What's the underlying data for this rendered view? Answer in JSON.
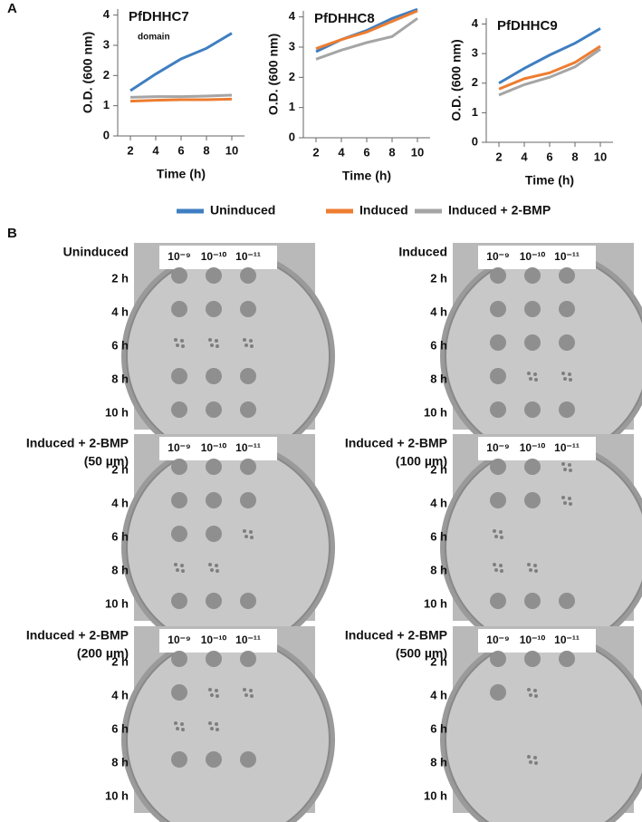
{
  "figure": {
    "panel_a": "A",
    "panel_b": "B"
  },
  "chart_data": [
    {
      "type": "line",
      "title": "PfDHHC7",
      "annotation": "domain",
      "x_label": "Time (h)",
      "y_label": "O.D. (600 nm)",
      "x": [
        2,
        4,
        6,
        8,
        10
      ],
      "xlim": [
        1,
        11
      ],
      "xticks": [
        2,
        4,
        6,
        8,
        10
      ],
      "ylim": [
        0,
        4.2
      ],
      "yticks": [
        0,
        1,
        2,
        3,
        4
      ],
      "series": [
        {
          "name": "Uninduced",
          "color": "#3f7fc1",
          "values": [
            1.5,
            2.05,
            2.55,
            2.9,
            3.4
          ]
        },
        {
          "name": "Induced",
          "color": "#ed7d31",
          "values": [
            1.15,
            1.18,
            1.2,
            1.2,
            1.22
          ]
        },
        {
          "name": "Induced + 2-BMP",
          "color": "#a5a5a5",
          "values": [
            1.28,
            1.3,
            1.3,
            1.32,
            1.35
          ]
        }
      ]
    },
    {
      "type": "line",
      "title": "PfDHHC8",
      "x_label": "Time (h)",
      "y_label": "O.D. (600 nm)",
      "x": [
        2,
        4,
        6,
        8,
        10
      ],
      "xlim": [
        1,
        11
      ],
      "xticks": [
        2,
        4,
        6,
        8,
        10
      ],
      "ylim": [
        0,
        4.2
      ],
      "yticks": [
        0,
        1,
        2,
        3,
        4
      ],
      "series": [
        {
          "color": "#3f7fc1",
          "values": [
            2.85,
            3.25,
            3.55,
            3.95,
            4.25
          ]
        },
        {
          "color": "#ed7d31",
          "values": [
            2.95,
            3.25,
            3.5,
            3.85,
            4.2
          ]
        },
        {
          "color": "#a5a5a5",
          "values": [
            2.6,
            2.9,
            3.15,
            3.35,
            3.95
          ]
        }
      ]
    },
    {
      "type": "line",
      "title": "PfDHHC9",
      "x_label": "Time (h)",
      "y_label": "O.D. (600 nm)",
      "x": [
        2,
        4,
        6,
        8,
        10
      ],
      "xlim": [
        1,
        11
      ],
      "xticks": [
        2,
        4,
        6,
        8,
        10
      ],
      "ylim": [
        0,
        4.2
      ],
      "yticks": [
        0,
        1,
        2,
        3,
        4
      ],
      "series": [
        {
          "color": "#3f7fc1",
          "values": [
            2.0,
            2.5,
            2.95,
            3.35,
            3.85
          ]
        },
        {
          "color": "#ed7d31",
          "values": [
            1.8,
            2.15,
            2.35,
            2.7,
            3.25
          ]
        },
        {
          "color": "#a5a5a5",
          "values": [
            1.6,
            1.95,
            2.2,
            2.55,
            3.15
          ]
        }
      ]
    }
  ],
  "panel_b": {
    "plates": [
      {
        "title": [
          "Uninduced"
        ],
        "dilutions": [
          "10⁻⁹",
          "10⁻¹⁰",
          "10⁻¹¹"
        ],
        "times": [
          "2 h",
          "4 h",
          "6 h",
          "8 h",
          "10 h"
        ]
      },
      {
        "title": [
          "Induced"
        ],
        "dilutions": [
          "10⁻⁹",
          "10⁻¹⁰",
          "10⁻¹¹"
        ],
        "times": [
          "2 h",
          "4 h",
          "6 h",
          "8 h",
          "10 h"
        ]
      },
      {
        "title": [
          "Induced + 2-BMP",
          "(50 µm)"
        ],
        "dilutions": [
          "10⁻⁹",
          "10⁻¹⁰",
          "10⁻¹¹"
        ],
        "times": [
          "2 h",
          "4 h",
          "6 h",
          "8 h",
          "10 h"
        ]
      },
      {
        "title": [
          "Induced + 2-BMP",
          "(100 µm)"
        ],
        "dilutions": [
          "10⁻⁹",
          "10⁻¹⁰",
          "10⁻¹¹"
        ],
        "times": [
          "2 h",
          "4 h",
          "6 h",
          "8 h",
          "10 h"
        ]
      },
      {
        "title": [
          "Induced + 2-BMP",
          "(200 µm)"
        ],
        "dilutions": [
          "10⁻⁹",
          "10⁻¹⁰",
          "10⁻¹¹"
        ],
        "times": [
          "2 h",
          "4 h",
          "6 h",
          "8 h",
          "10 h"
        ]
      },
      {
        "title": [
          "Induced + 2-BMP",
          "(500 µm)"
        ],
        "dilutions": [
          "10⁻⁹",
          "10⁻¹⁰",
          "10⁻¹¹"
        ],
        "times": [
          "2 h",
          "4 h",
          "6 h",
          "8 h",
          "10 h"
        ]
      }
    ]
  }
}
